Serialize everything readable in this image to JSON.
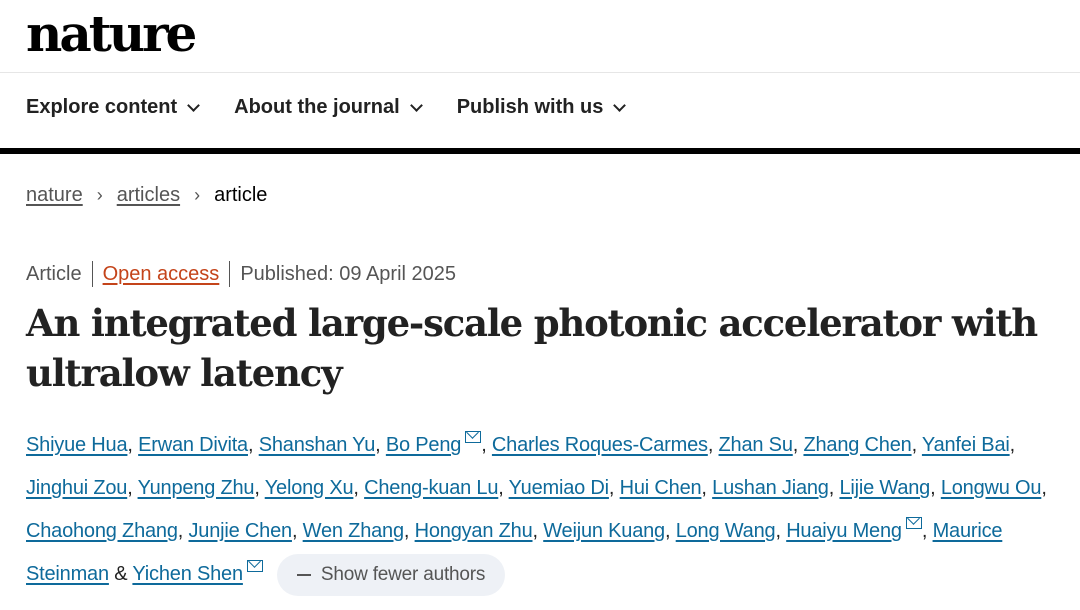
{
  "logo": "nature",
  "nav": [
    {
      "label": "Explore content"
    },
    {
      "label": "About the journal"
    },
    {
      "label": "Publish with us"
    }
  ],
  "breadcrumb": {
    "items": [
      "nature",
      "articles"
    ],
    "current": "article"
  },
  "meta": {
    "type": "Article",
    "access": "Open access",
    "published": "Published: 09 April 2025"
  },
  "title": "An integrated large-scale photonic accelerator with ultralow latency",
  "authors": [
    {
      "name": "Shiyue Hua"
    },
    {
      "name": "Erwan Divita"
    },
    {
      "name": "Shanshan Yu"
    },
    {
      "name": "Bo Peng",
      "mail": true
    },
    {
      "name": "Charles Roques-Carmes"
    },
    {
      "name": "Zhan Su"
    },
    {
      "name": "Zhang Chen"
    },
    {
      "name": "Yanfei Bai"
    },
    {
      "name": "Jinghui Zou"
    },
    {
      "name": "Yunpeng Zhu"
    },
    {
      "name": "Yelong Xu"
    },
    {
      "name": "Cheng-kuan Lu"
    },
    {
      "name": "Yuemiao Di"
    },
    {
      "name": "Hui Chen"
    },
    {
      "name": "Lushan Jiang"
    },
    {
      "name": "Lijie Wang"
    },
    {
      "name": "Longwu Ou"
    },
    {
      "name": "Chaohong Zhang"
    },
    {
      "name": "Junjie Chen"
    },
    {
      "name": "Wen Zhang"
    },
    {
      "name": "Hongyan Zhu"
    },
    {
      "name": "Weijun Kuang"
    },
    {
      "name": "Long Wang"
    },
    {
      "name": "Huaiyu Meng",
      "mail": true
    },
    {
      "name": "Maurice Steinman"
    },
    {
      "name": "Yichen Shen",
      "mail": true
    }
  ],
  "authors_conjunction": "&",
  "show_fewer_label": "Show fewer authors",
  "colors": {
    "link": "#0e6a9b",
    "open_access": "#c4441a",
    "pill_bg": "#eef1f6"
  }
}
